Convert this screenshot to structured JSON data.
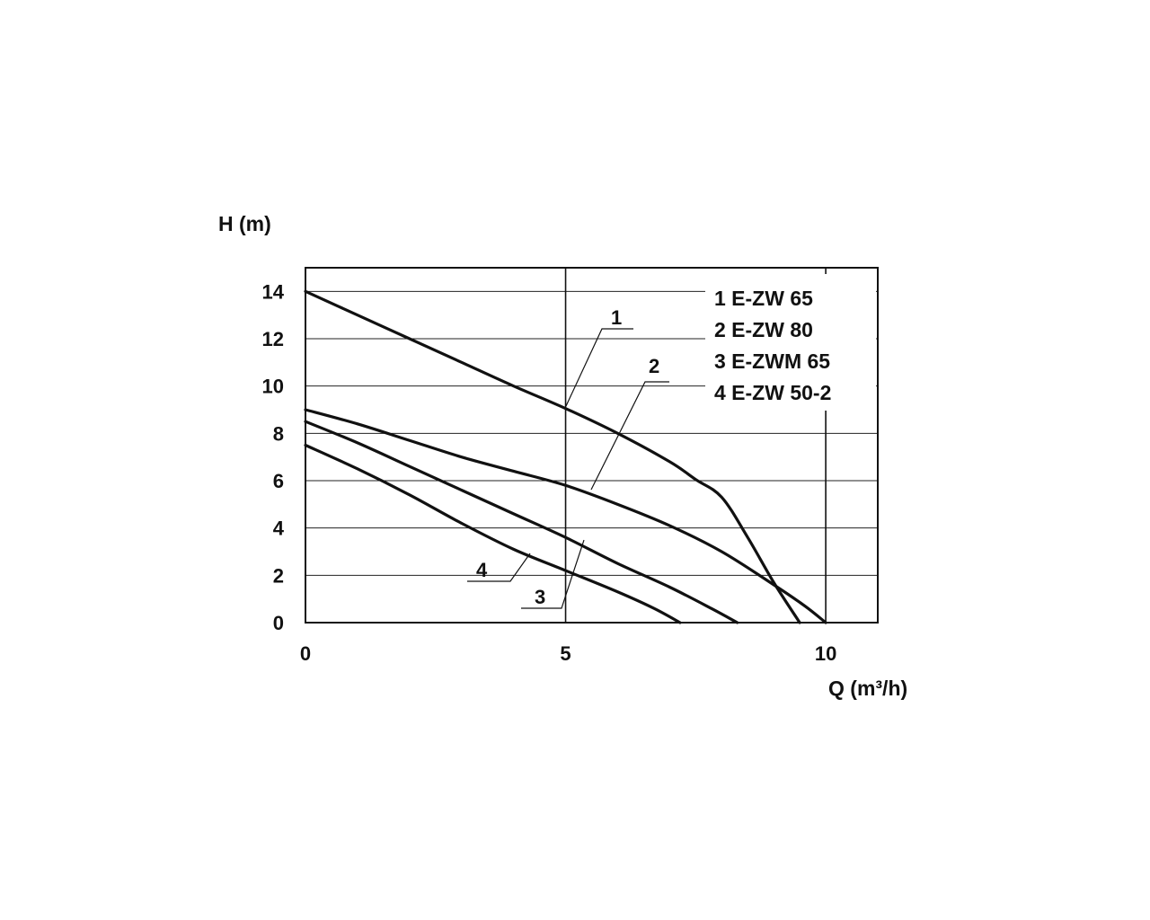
{
  "chart_data": {
    "type": "line",
    "title": "",
    "xlabel": "Q (m³/h)",
    "ylabel": "H (m)",
    "xlim": [
      0,
      11
    ],
    "ylim": [
      0,
      15
    ],
    "x_ticks": [
      0,
      5,
      10
    ],
    "y_ticks": [
      0,
      2,
      4,
      6,
      8,
      10,
      12,
      14
    ],
    "x_tick_labels": [
      "0",
      "5",
      "10"
    ],
    "y_tick_labels": [
      "0",
      "2",
      "4",
      "6",
      "8",
      "10",
      "12",
      "14"
    ],
    "grid": "horizontal lines at each y tick; vertical lines at x = 5 and x = 10",
    "legend_position": "top-right",
    "series": [
      {
        "name": "E-ZW 65",
        "legend_label": "1  E-ZW 65",
        "curve_label": "1",
        "color": "#111111",
        "x": [
          0,
          1,
          2,
          3,
          4,
          5,
          6,
          7,
          7.5,
          8,
          8.5,
          9,
          9.5
        ],
        "y": [
          14,
          13,
          12,
          11,
          10,
          9.05,
          8.0,
          6.8,
          6.05,
          5.3,
          3.6,
          1.7,
          0
        ]
      },
      {
        "name": "E-ZW 80",
        "legend_label": "2  E-ZW 80",
        "curve_label": "2",
        "color": "#111111",
        "x": [
          0,
          1,
          2,
          3,
          4,
          5,
          6,
          7,
          8,
          9,
          9.6,
          10
        ],
        "y": [
          9.0,
          8.4,
          7.7,
          7.0,
          6.4,
          5.8,
          5.0,
          4.1,
          3.0,
          1.6,
          0.7,
          0
        ]
      },
      {
        "name": "E-ZWM 65",
        "legend_label": "3  E-ZWM 65",
        "curve_label": "3",
        "color": "#111111",
        "x": [
          0,
          1,
          2,
          3,
          4,
          5,
          6,
          7,
          7.8,
          8.3
        ],
        "y": [
          8.5,
          7.6,
          6.6,
          5.6,
          4.6,
          3.6,
          2.5,
          1.5,
          0.6,
          0
        ]
      },
      {
        "name": "E-ZW 50-2",
        "legend_label": "4  E-ZW 50-2",
        "curve_label": "4",
        "color": "#111111",
        "x": [
          0,
          1,
          2,
          3,
          4,
          5,
          6,
          6.7,
          7.2
        ],
        "y": [
          7.5,
          6.5,
          5.4,
          4.2,
          3.1,
          2.2,
          1.3,
          0.6,
          0
        ]
      }
    ]
  }
}
